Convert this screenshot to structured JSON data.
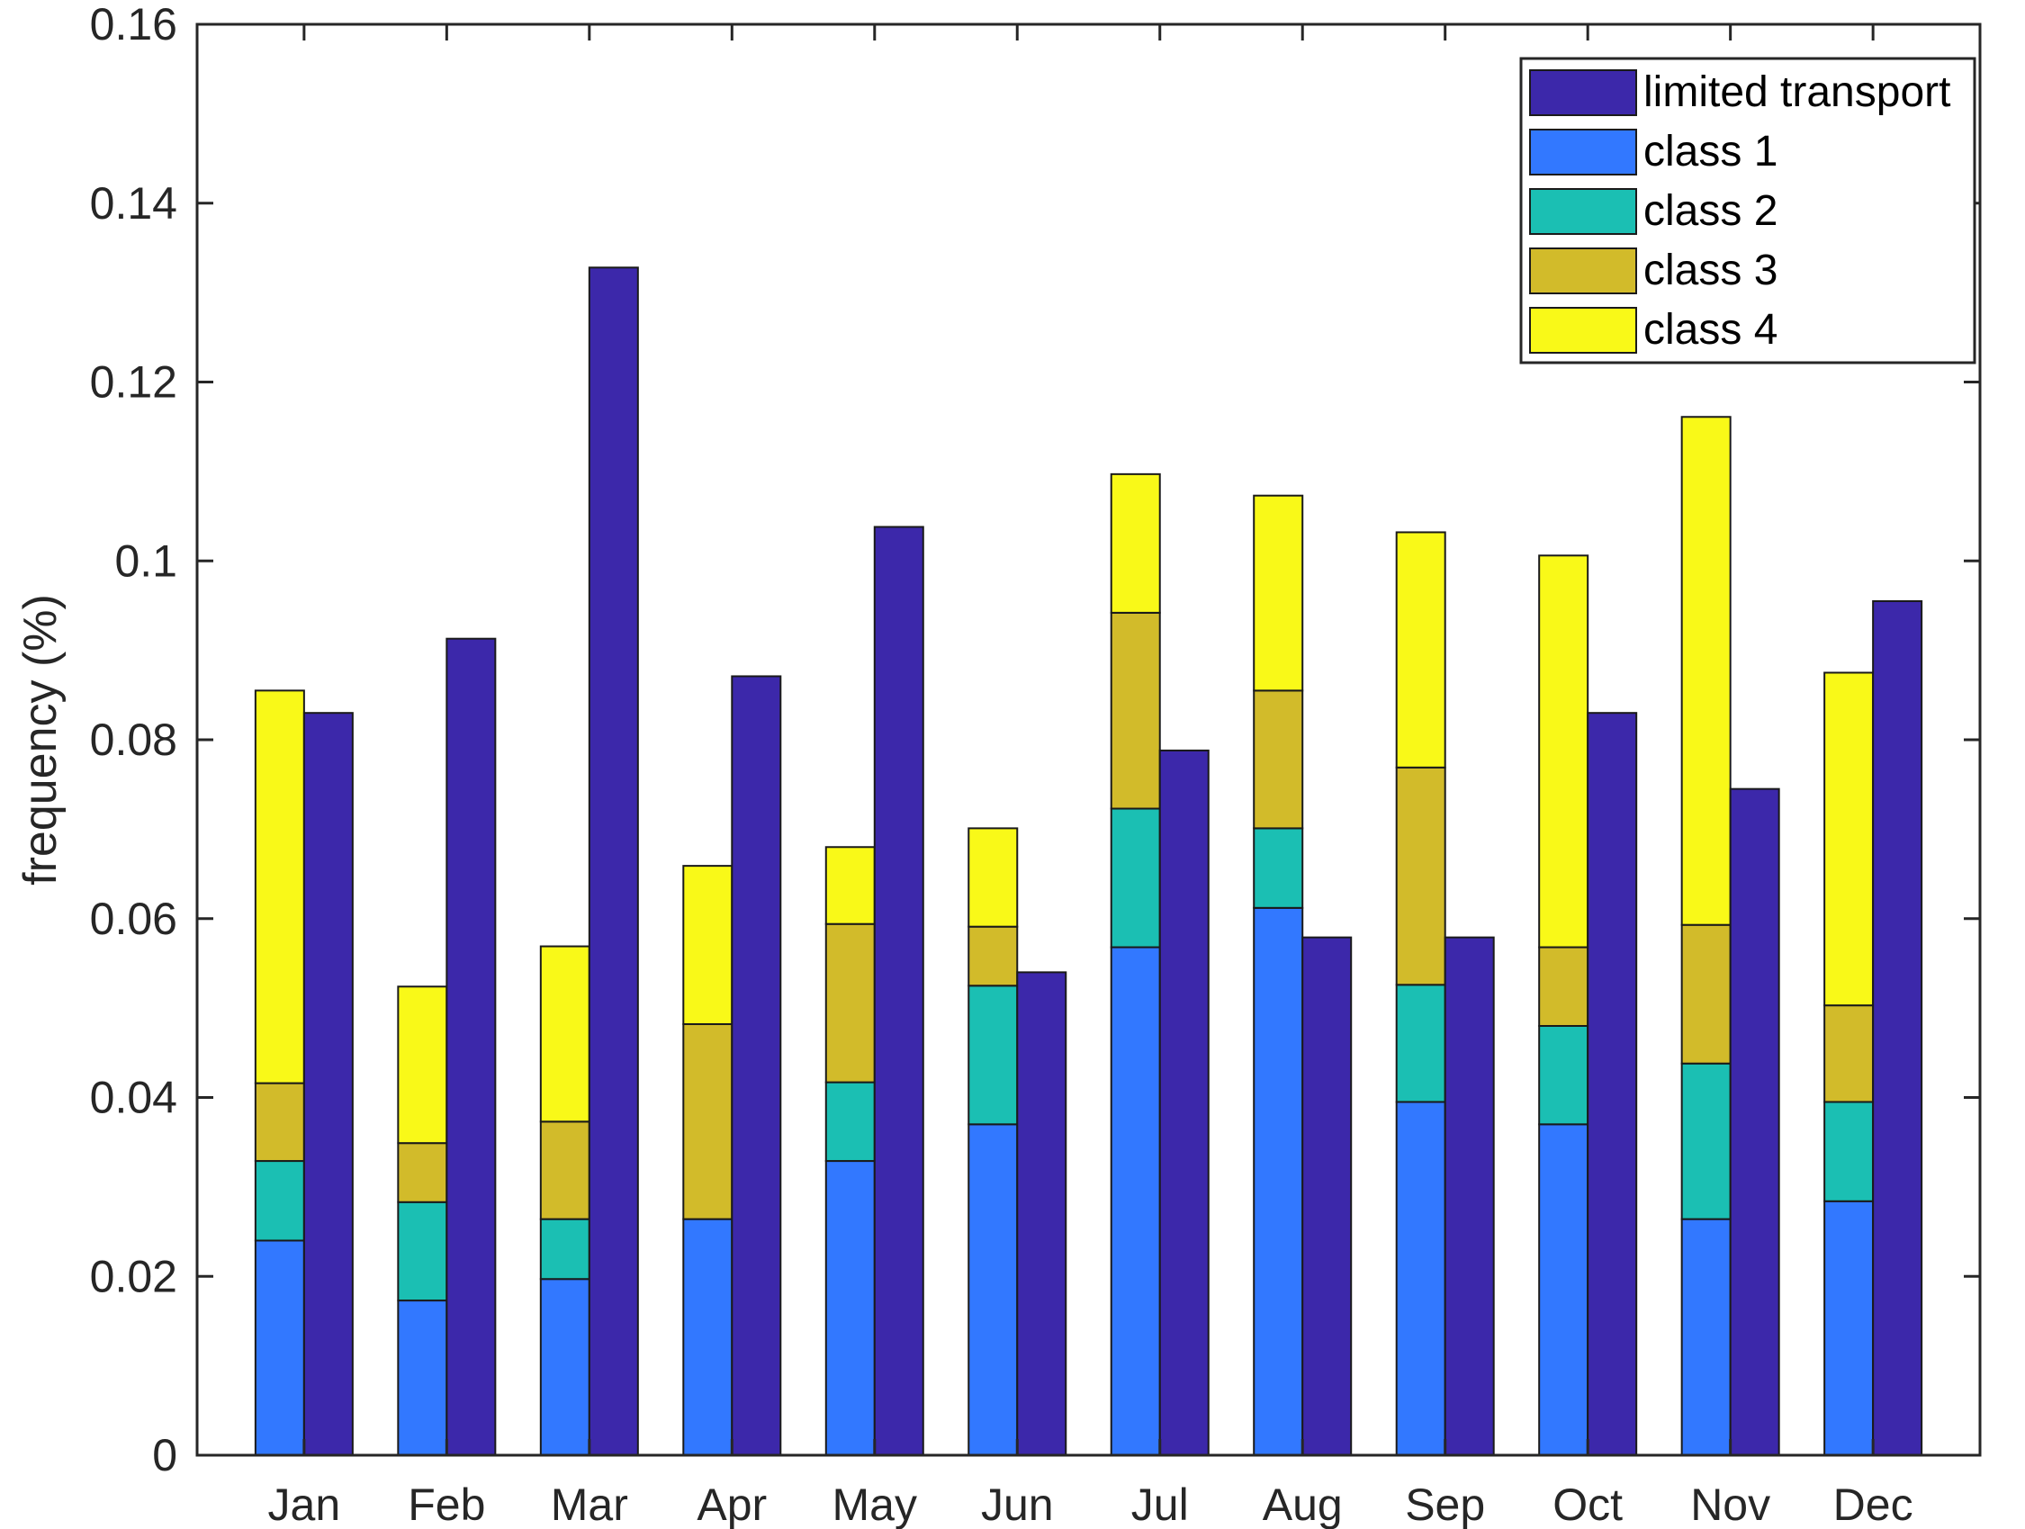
{
  "chart_data": {
    "type": "bar",
    "title": "",
    "xlabel": "",
    "ylabel": "frequency (%)",
    "ylim": [
      0,
      0.16
    ],
    "yticks": [
      0,
      0.02,
      0.04,
      0.06,
      0.08,
      0.1,
      0.12,
      0.14,
      0.16
    ],
    "ytick_labels": [
      "0",
      "0.02",
      "0.04",
      "0.06",
      "0.08",
      "0.1",
      "0.12",
      "0.14",
      "0.16"
    ],
    "categories": [
      "Jan",
      "Feb",
      "Mar",
      "Apr",
      "May",
      "Jun",
      "Jul",
      "Aug",
      "Sep",
      "Oct",
      "Nov",
      "Dec"
    ],
    "grid": false,
    "legend_position": "top-right",
    "stacked_series": [
      {
        "name": "class 1",
        "color": "#3278ff",
        "values": [
          0.024,
          0.0173,
          0.0197,
          0.0264,
          0.0329,
          0.037,
          0.0568,
          0.0612,
          0.0395,
          0.037,
          0.0264,
          0.0284
        ]
      },
      {
        "name": "class 2",
        "color": "#1bbfb3",
        "values": [
          0.0089,
          0.011,
          0.0067,
          0.0,
          0.0088,
          0.0155,
          0.0155,
          0.0089,
          0.0131,
          0.011,
          0.0174,
          0.0111
        ]
      },
      {
        "name": "class 3",
        "color": "#d2bb2a",
        "values": [
          0.0087,
          0.0066,
          0.0109,
          0.0218,
          0.0177,
          0.0066,
          0.0219,
          0.0154,
          0.0243,
          0.0088,
          0.0155,
          0.0108
        ]
      },
      {
        "name": "class 4",
        "color": "#f9f918",
        "values": [
          0.0439,
          0.0175,
          0.0196,
          0.0177,
          0.0086,
          0.011,
          0.0155,
          0.0218,
          0.0263,
          0.0438,
          0.0568,
          0.0372
        ]
      }
    ],
    "separate_series": [
      {
        "name": "limited transport",
        "color": "#3c28aa",
        "values": [
          0.083,
          0.0913,
          0.1328,
          0.0871,
          0.1038,
          0.054,
          0.0788,
          0.0579,
          0.0579,
          0.083,
          0.0745,
          0.0955
        ]
      }
    ],
    "legend": [
      "limited transport",
      "class 1",
      "class 2",
      "class 3",
      "class 4"
    ]
  }
}
